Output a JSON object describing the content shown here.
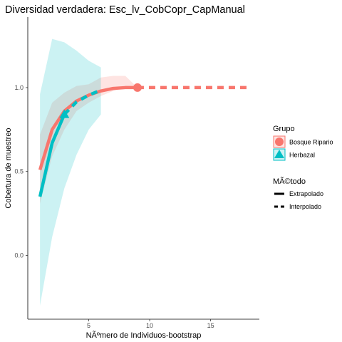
{
  "chart_data": {
    "type": "line",
    "title": "Diversidad verdadera: Esc_lv_CobCopr_CapManual",
    "xlabel": "NÃºmero de Individuos-bootstrap",
    "ylabel": "Cobertura de muestreo",
    "xlim": [
      0,
      19
    ],
    "ylim": [
      -0.38,
      1.42
    ],
    "x_ticks": [
      5,
      10,
      15
    ],
    "x_tick_labels": [
      "5",
      "10",
      "15"
    ],
    "y_ticks": [
      0.0,
      0.5,
      1.0
    ],
    "y_tick_labels": [
      "0.0",
      "0.5",
      "1.0"
    ],
    "grid": false,
    "legend_position": "right",
    "series": [
      {
        "name": "Bosque Ripario",
        "color": "#F8766D",
        "marker": "circle",
        "observed": {
          "x": 9,
          "y": 1.0
        },
        "interpolated": {
          "x": [
            1,
            2,
            3,
            4,
            5,
            6,
            7,
            8,
            9
          ],
          "y": [
            0.51,
            0.75,
            0.86,
            0.92,
            0.955,
            0.98,
            0.995,
            1.0,
            1.0
          ]
        },
        "extrapolated": {
          "x": [
            9,
            10,
            11,
            12,
            13,
            14,
            15,
            16,
            17,
            18
          ],
          "y": [
            1.0,
            1.0,
            1.0,
            1.0,
            1.0,
            1.0,
            1.0,
            1.0,
            1.0,
            1.0
          ]
        },
        "band": {
          "x": [
            1,
            2,
            3,
            4,
            5,
            6,
            7,
            8,
            9
          ],
          "lower": [
            0.31,
            0.59,
            0.75,
            0.86,
            0.91,
            0.95,
            0.98,
            1.0,
            1.0
          ],
          "upper": [
            0.72,
            0.91,
            0.97,
            1.01,
            1.02,
            1.06,
            1.07,
            1.07,
            1.0
          ]
        }
      },
      {
        "name": "Herbazal",
        "color": "#00BFC4",
        "marker": "triangle",
        "observed": {
          "x": 3,
          "y": 0.84
        },
        "interpolated": {
          "x": [
            1,
            2,
            3
          ],
          "y": [
            0.35,
            0.67,
            0.84
          ]
        },
        "extrapolated": {
          "x": [
            3,
            4,
            5,
            6
          ],
          "y": [
            0.84,
            0.915,
            0.955,
            0.985
          ]
        },
        "band": {
          "x": [
            1,
            2,
            3,
            4,
            5,
            6
          ],
          "lower": [
            -0.3,
            0.11,
            0.4,
            0.6,
            0.75,
            0.84
          ],
          "upper": [
            0.96,
            1.29,
            1.27,
            1.22,
            1.16,
            1.12
          ]
        }
      }
    ]
  },
  "legend": {
    "grupo_title": "Grupo",
    "grupo_items": [
      "Bosque Ripario",
      "Herbazal"
    ],
    "metodo_title": "MÃ©todo",
    "metodo_items": [
      "Extrapolado",
      "Interpolado"
    ]
  }
}
